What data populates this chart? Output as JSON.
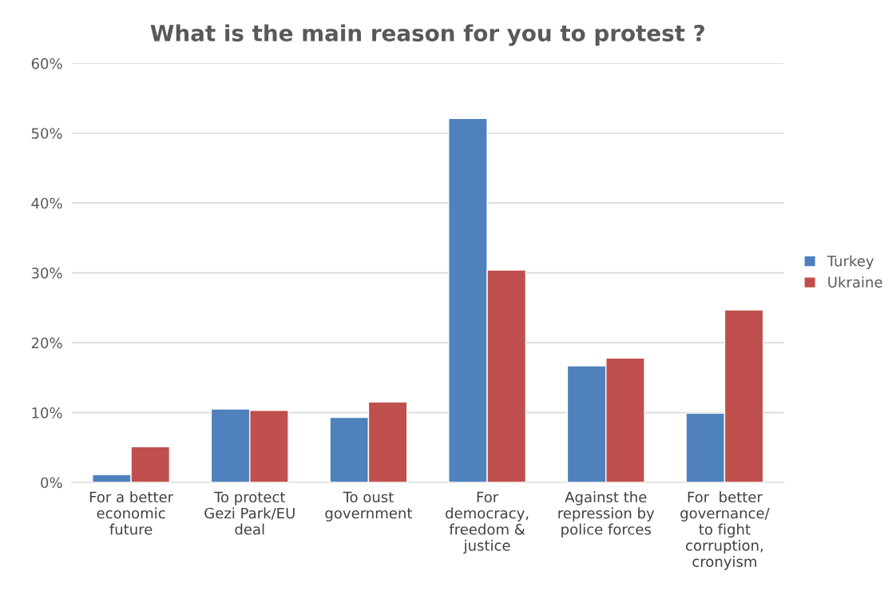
{
  "chart_data": {
    "type": "bar",
    "title": "What is the main reason for you to protest ?",
    "categories": [
      "For a better\neconomic\nfuture",
      "To protect\nGezi Park/EU\ndeal",
      "To oust\ngovernment",
      "For\ndemocracy,\nfreedom &\njustice",
      "Against the\nrepression by\npolice forces",
      "For  better\ngovernance/\nto fight\ncorruption,\ncronyism"
    ],
    "series": [
      {
        "name": "Turkey",
        "color": "#4f81bd",
        "values": [
          1.1,
          10.5,
          9.3,
          52.1,
          16.7,
          9.9
        ]
      },
      {
        "name": "Ukraine",
        "color": "#c0504d",
        "values": [
          5.1,
          10.3,
          11.5,
          30.4,
          17.8,
          24.7
        ]
      }
    ],
    "ylim": [
      0,
      60
    ],
    "yticks": [
      {
        "value": 0,
        "label": "0%"
      },
      {
        "value": 10,
        "label": "10%"
      },
      {
        "value": 20,
        "label": "20%"
      },
      {
        "value": 30,
        "label": "30%"
      },
      {
        "value": 40,
        "label": "40%"
      },
      {
        "value": 50,
        "label": "50%"
      },
      {
        "value": 60,
        "label": "60%"
      }
    ],
    "grid": "y",
    "legend": "right"
  }
}
